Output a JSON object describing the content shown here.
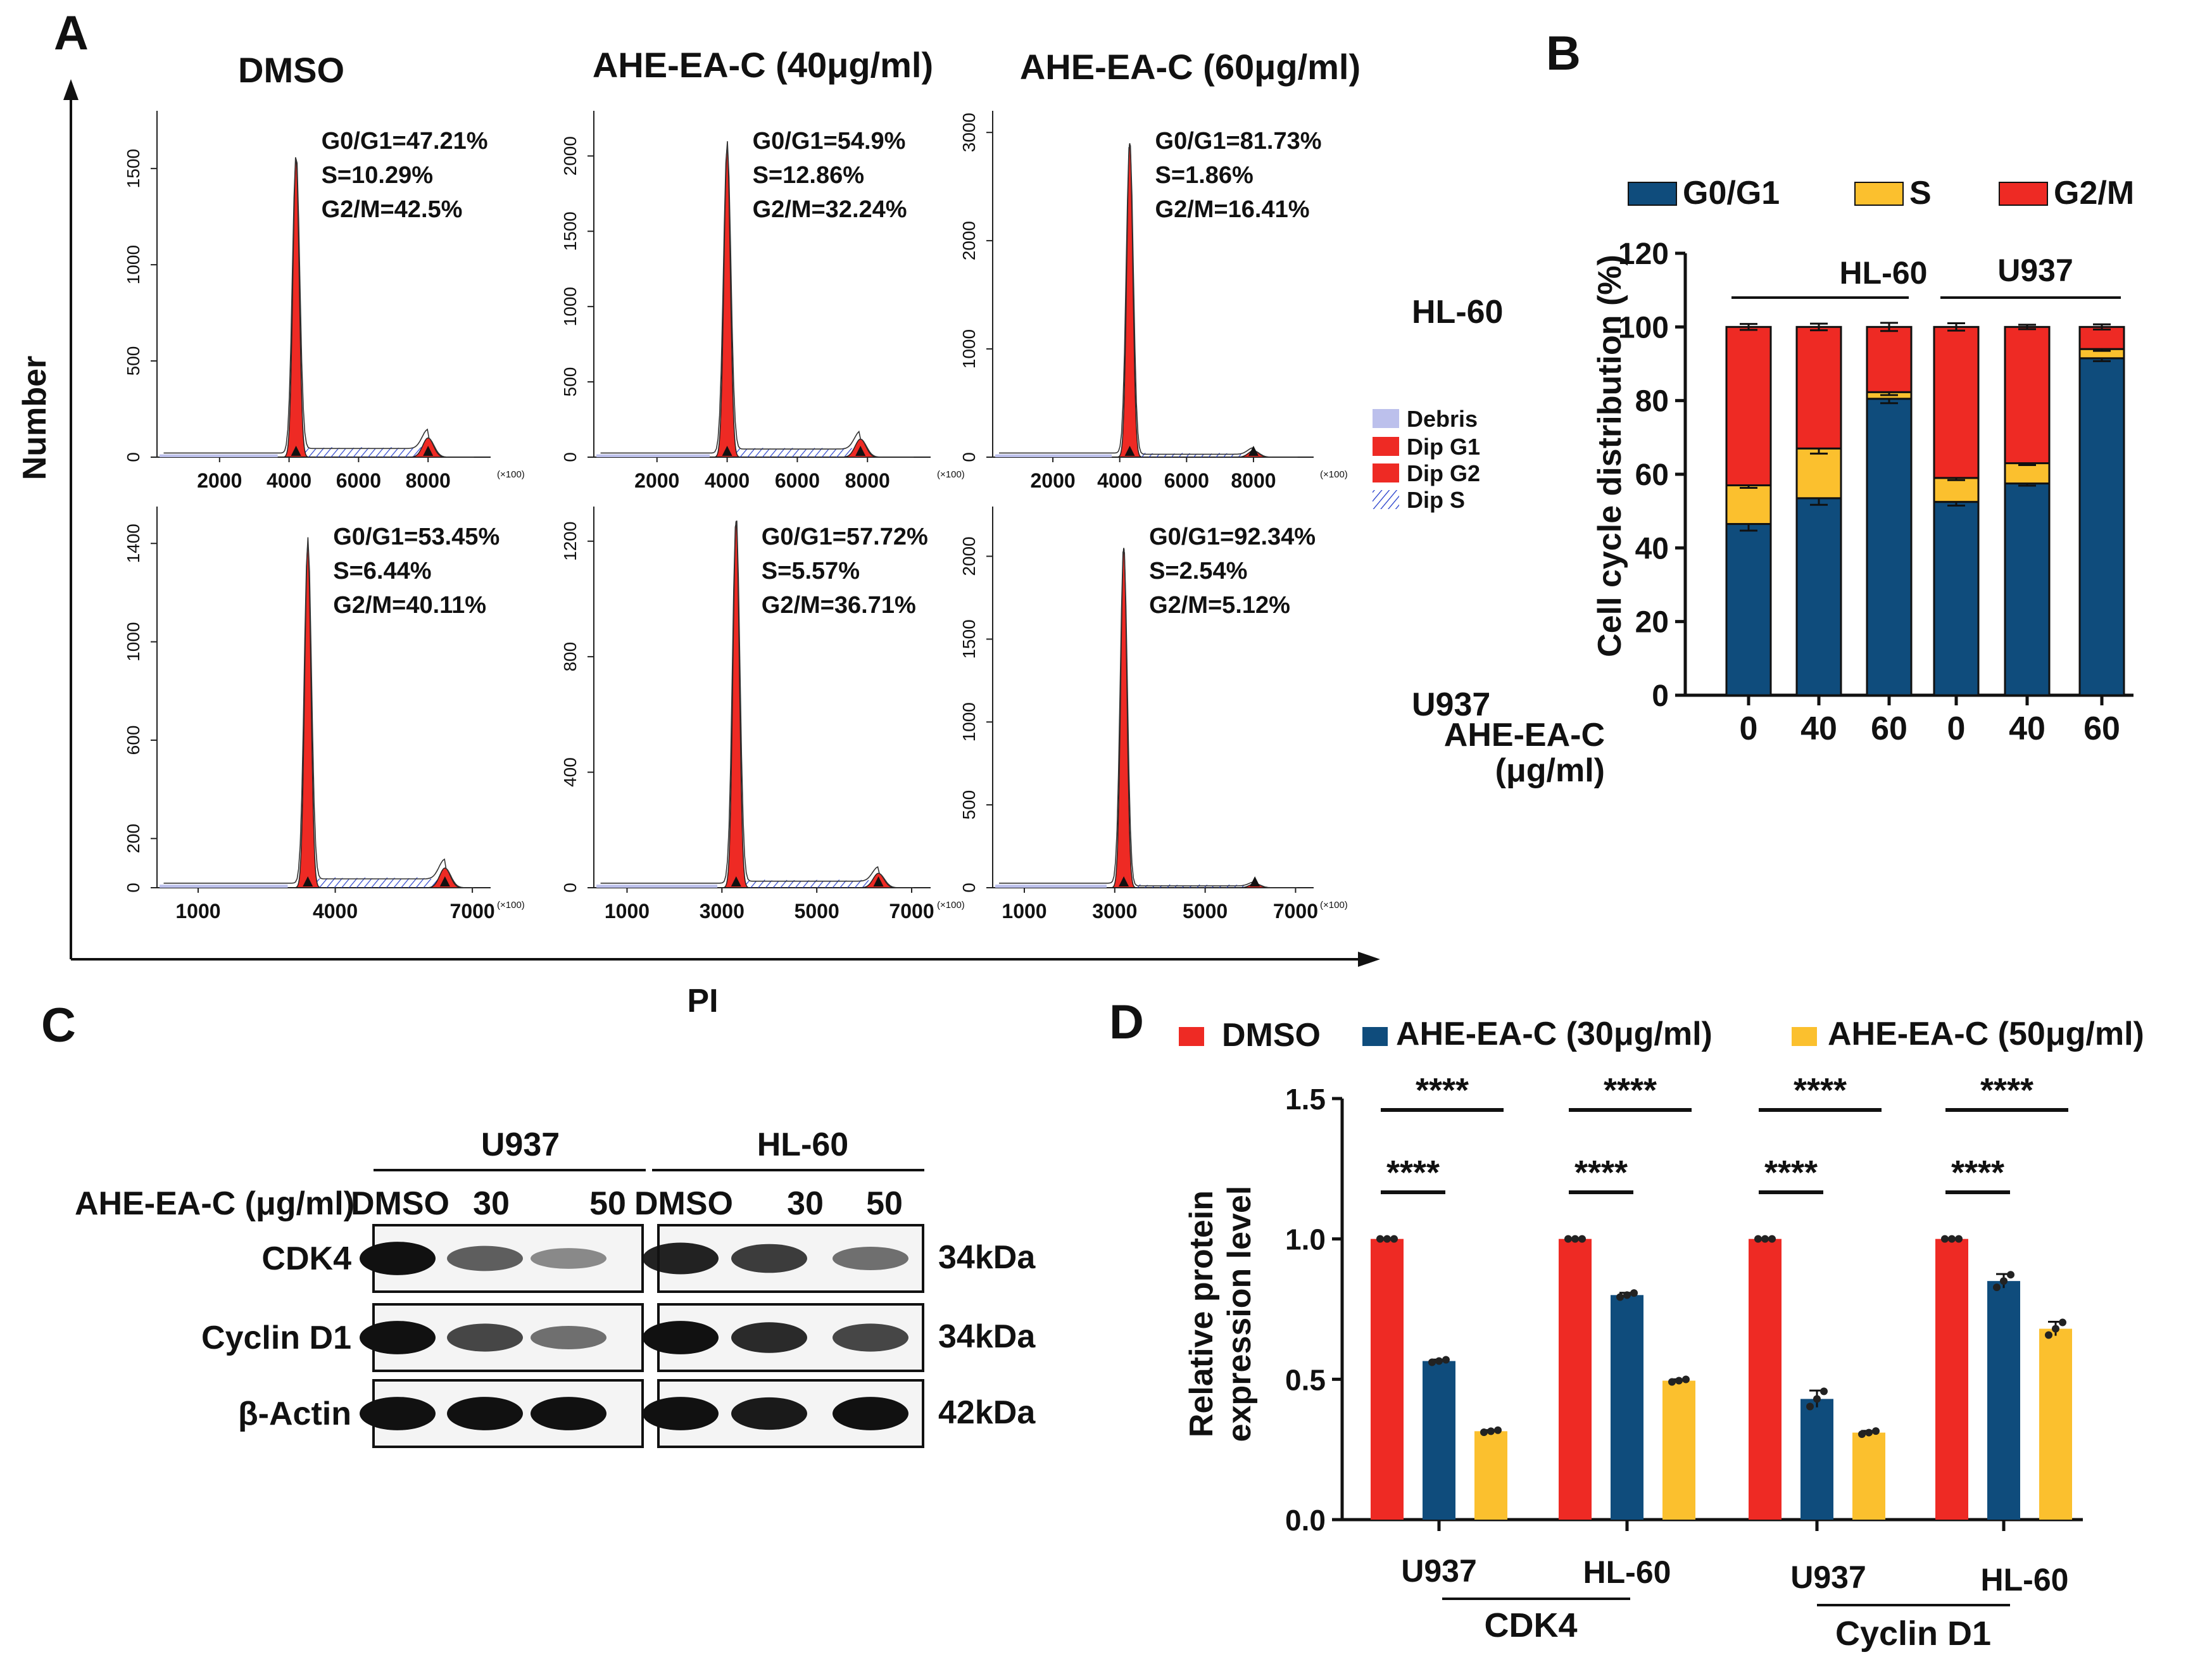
{
  "panel_a": {
    "letter": "A",
    "y_title": "Number",
    "x_title": "PI",
    "col_titles": [
      "DMSO",
      "AHE-EA-C (40μg/ml)",
      "AHE-EA-C (60μg/ml)"
    ],
    "row_labels": [
      "HL-60",
      "U937"
    ],
    "legend": [
      "Debris",
      "Dip G1",
      "Dip G2",
      "Dip S"
    ],
    "x_multiplier": "(×100)",
    "histograms": [
      {
        "row": 0,
        "col": 0,
        "yticks": [
          "0",
          "500",
          "1000",
          "1500"
        ],
        "ymax": 1800,
        "xticks": [
          "2000",
          "4000",
          "6000",
          "8000"
        ],
        "xmin": 200,
        "xmax": 9800,
        "g1_pos": 4200,
        "g1_h": 1550,
        "g2_pos": 8000,
        "g2_h": 100,
        "stats": [
          "G0/G1=47.21%",
          "S=10.29%",
          "G2/M=42.5%"
        ]
      },
      {
        "row": 0,
        "col": 1,
        "yticks": [
          "0",
          "500",
          "1000",
          "1500",
          "2000"
        ],
        "ymax": 2300,
        "xticks": [
          "2000",
          "4000",
          "6000",
          "8000"
        ],
        "xmin": 200,
        "xmax": 9800,
        "g1_pos": 4000,
        "g1_h": 2050,
        "g2_pos": 7800,
        "g2_h": 120,
        "stats": [
          "G0/G1=54.9%",
          "S=12.86%",
          "G2/M=32.24%"
        ]
      },
      {
        "row": 0,
        "col": 2,
        "yticks": [
          "0",
          "1000",
          "2000",
          "3000"
        ],
        "ymax": 3200,
        "xticks": [
          "2000",
          "4000",
          "6000",
          "8000"
        ],
        "xmin": 200,
        "xmax": 9800,
        "g1_pos": 4300,
        "g1_h": 2900,
        "g2_pos": 8000,
        "g2_h": 60,
        "stats": [
          "G0/G1=81.73%",
          "S=1.86%",
          "G2/M=16.41%"
        ]
      },
      {
        "row": 1,
        "col": 0,
        "yticks": [
          "0",
          "200",
          "600",
          "1000",
          "1400"
        ],
        "ymax": 1550,
        "xticks": [
          "1000",
          "4000",
          "7000"
        ],
        "xmin": 100,
        "xmax": 7400,
        "g1_pos": 3400,
        "g1_h": 1390,
        "g2_pos": 6400,
        "g2_h": 80,
        "stats": [
          "G0/G1=53.45%",
          "S=6.44%",
          "G2/M=40.11%"
        ]
      },
      {
        "row": 1,
        "col": 1,
        "yticks": [
          "0",
          "400",
          "800",
          "1200"
        ],
        "ymax": 1320,
        "xticks": [
          "1000",
          "3000",
          "5000",
          "7000"
        ],
        "xmin": 300,
        "xmax": 7400,
        "g1_pos": 3300,
        "g1_h": 1270,
        "g2_pos": 6300,
        "g2_h": 50,
        "stats": [
          "G0/G1=57.72%",
          "S=5.57%",
          "G2/M=36.71%"
        ]
      },
      {
        "row": 1,
        "col": 2,
        "yticks": [
          "0",
          "500",
          "1000",
          "1500",
          "2000"
        ],
        "ymax": 2300,
        "xticks": [
          "1000",
          "3000",
          "5000",
          "7000"
        ],
        "xmin": 300,
        "xmax": 7400,
        "g1_pos": 3200,
        "g1_h": 2050,
        "g2_pos": 6100,
        "g2_h": 25,
        "stats": [
          "G0/G1=92.34%",
          "S=2.54%",
          "G2/M=5.12%"
        ]
      }
    ]
  },
  "panel_b": {
    "letter": "B",
    "xlabel": "AHE-EA-C (μg/ml)",
    "xlabel_lines": [
      "AHE-EA-C",
      "(μg/ml)"
    ],
    "group_labels": [
      "HL-60",
      "U937"
    ],
    "legend": [
      "G0/G1",
      "S",
      "G2/M"
    ]
  },
  "panel_c": {
    "letter": "C",
    "cell_lines": [
      "U937",
      "HL-60"
    ],
    "treatment_label": "AHE-EA-C (μg/ml)",
    "lane_labels": [
      "DMSO",
      "30",
      "50",
      "DMSO",
      "30",
      "50"
    ],
    "proteins": [
      "CDK4",
      "Cyclin D1",
      "β-Actin"
    ],
    "sizes": [
      "34kDa",
      "34kDa",
      "42kDa"
    ]
  },
  "panel_d": {
    "letter": "D",
    "legend": [
      "DMSO",
      "AHE-EA-C (30μg/ml)",
      "AHE-EA-C (50μg/ml)"
    ],
    "significance": "****",
    "ylabel_lines": [
      "Relative protein",
      "expression level"
    ],
    "groups": [
      "U937",
      "HL-60",
      "U937",
      "HL-60"
    ],
    "proteins": [
      "CDK4",
      "Cyclin D1"
    ]
  },
  "colors": {
    "red": "#EE2A24",
    "blue": "#0F4C7C",
    "yellow": "#FBC02E",
    "debris": "#BCC0EC",
    "dips": "#1B35C9"
  },
  "chart_data": [
    {
      "type": "bar",
      "title": "Cell cycle distribution (HL-60, U937)",
      "stacked": true,
      "categories": [
        "0",
        "40",
        "60",
        "0",
        "40",
        "60"
      ],
      "groups": [
        "HL-60",
        "HL-60",
        "HL-60",
        "U937",
        "U937",
        "U937"
      ],
      "ylabel": "Cell cycle distribution (%)",
      "ylim": [
        0,
        120
      ],
      "yticks": [
        0,
        20,
        40,
        60,
        80,
        100,
        120
      ],
      "series": [
        {
          "name": "G0/G1",
          "values": [
            46.5,
            53.5,
            80.5,
            52.5,
            57.5,
            91.5
          ],
          "errors": [
            1.8,
            1.8,
            1.2,
            1.0,
            0.6,
            0.8
          ]
        },
        {
          "name": "S",
          "values": [
            10.5,
            13.5,
            1.8,
            6.5,
            5.5,
            2.5
          ],
          "errors": [
            0.7,
            1.4,
            0.8,
            0.6,
            0.5,
            0.5
          ]
        },
        {
          "name": "G2/M",
          "values": [
            43.0,
            33.0,
            17.7,
            41.0,
            37.0,
            6.0
          ],
          "errors": [
            0.8,
            0.9,
            1.1,
            1.0,
            0.6,
            0.7
          ]
        }
      ]
    },
    {
      "type": "bar",
      "title": "Relative protein expression",
      "categories": [
        "U937 CDK4",
        "HL-60 CDK4",
        "U937 Cyclin D1",
        "HL-60 Cyclin D1"
      ],
      "ylabel": "Relative protein expression level",
      "ylim": [
        0,
        1.5
      ],
      "yticks": [
        0.0,
        0.5,
        1.0,
        1.5
      ],
      "ytick_labels": [
        "0.0",
        "0.5",
        "1.0",
        "1.5"
      ],
      "series": [
        {
          "name": "DMSO",
          "values": [
            1.0,
            1.0,
            1.0,
            1.0
          ],
          "errors": [
            0,
            0,
            0,
            0
          ]
        },
        {
          "name": "AHE-EA-C (30μg/ml)",
          "values": [
            0.565,
            0.8,
            0.43,
            0.85
          ],
          "errors": [
            0.005,
            0.008,
            0.03,
            0.025
          ]
        },
        {
          "name": "AHE-EA-C (50μg/ml)",
          "values": [
            0.315,
            0.495,
            0.31,
            0.68
          ],
          "errors": [
            0.004,
            0.005,
            0.006,
            0.025
          ]
        }
      ]
    }
  ]
}
